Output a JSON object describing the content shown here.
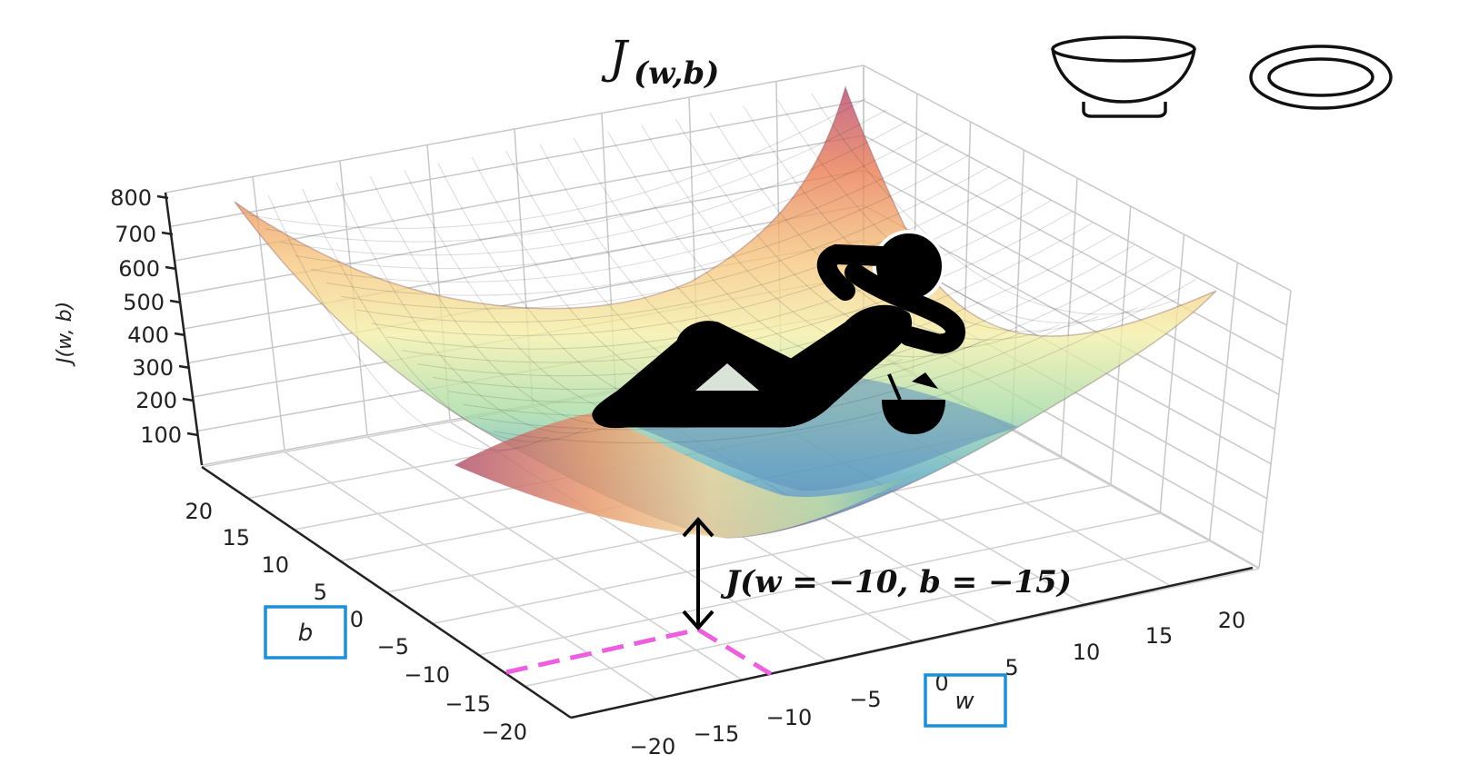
{
  "title": "J(w,b)",
  "title_main": "J",
  "title_sub": "(w,b)",
  "chart_data": {
    "type": "surface3d",
    "function": "J(w,b)",
    "z_axis_label": "J(w, b)",
    "x_axis_label": "w",
    "y_axis_label": "b",
    "w_range": [
      -20,
      20
    ],
    "b_range": [
      -20,
      20
    ],
    "z_ticks": [
      "100",
      "200",
      "300",
      "400",
      "500",
      "600",
      "700",
      "800"
    ],
    "w_ticks": [
      "−20",
      "−15",
      "−10",
      "−5",
      "0",
      "5",
      "10",
      "15",
      "20"
    ],
    "b_ticks": [
      "−20",
      "−15",
      "−10",
      "−5",
      "0",
      "5",
      "10",
      "15",
      "20"
    ],
    "grid": true,
    "colormap": "Spectral",
    "highlight_point": {
      "w": -10,
      "b": -15
    },
    "annotation": "J(w = −10, b = −15)",
    "annotation_color": "#000000",
    "highlight_line_color": "#ee5ee0",
    "box_color": "#1a8fdc"
  },
  "icons": {
    "bowl": "bowl-icon",
    "plate": "plate-icon",
    "person": "relaxing-person-icon",
    "drink": "coconut-drink-icon"
  }
}
